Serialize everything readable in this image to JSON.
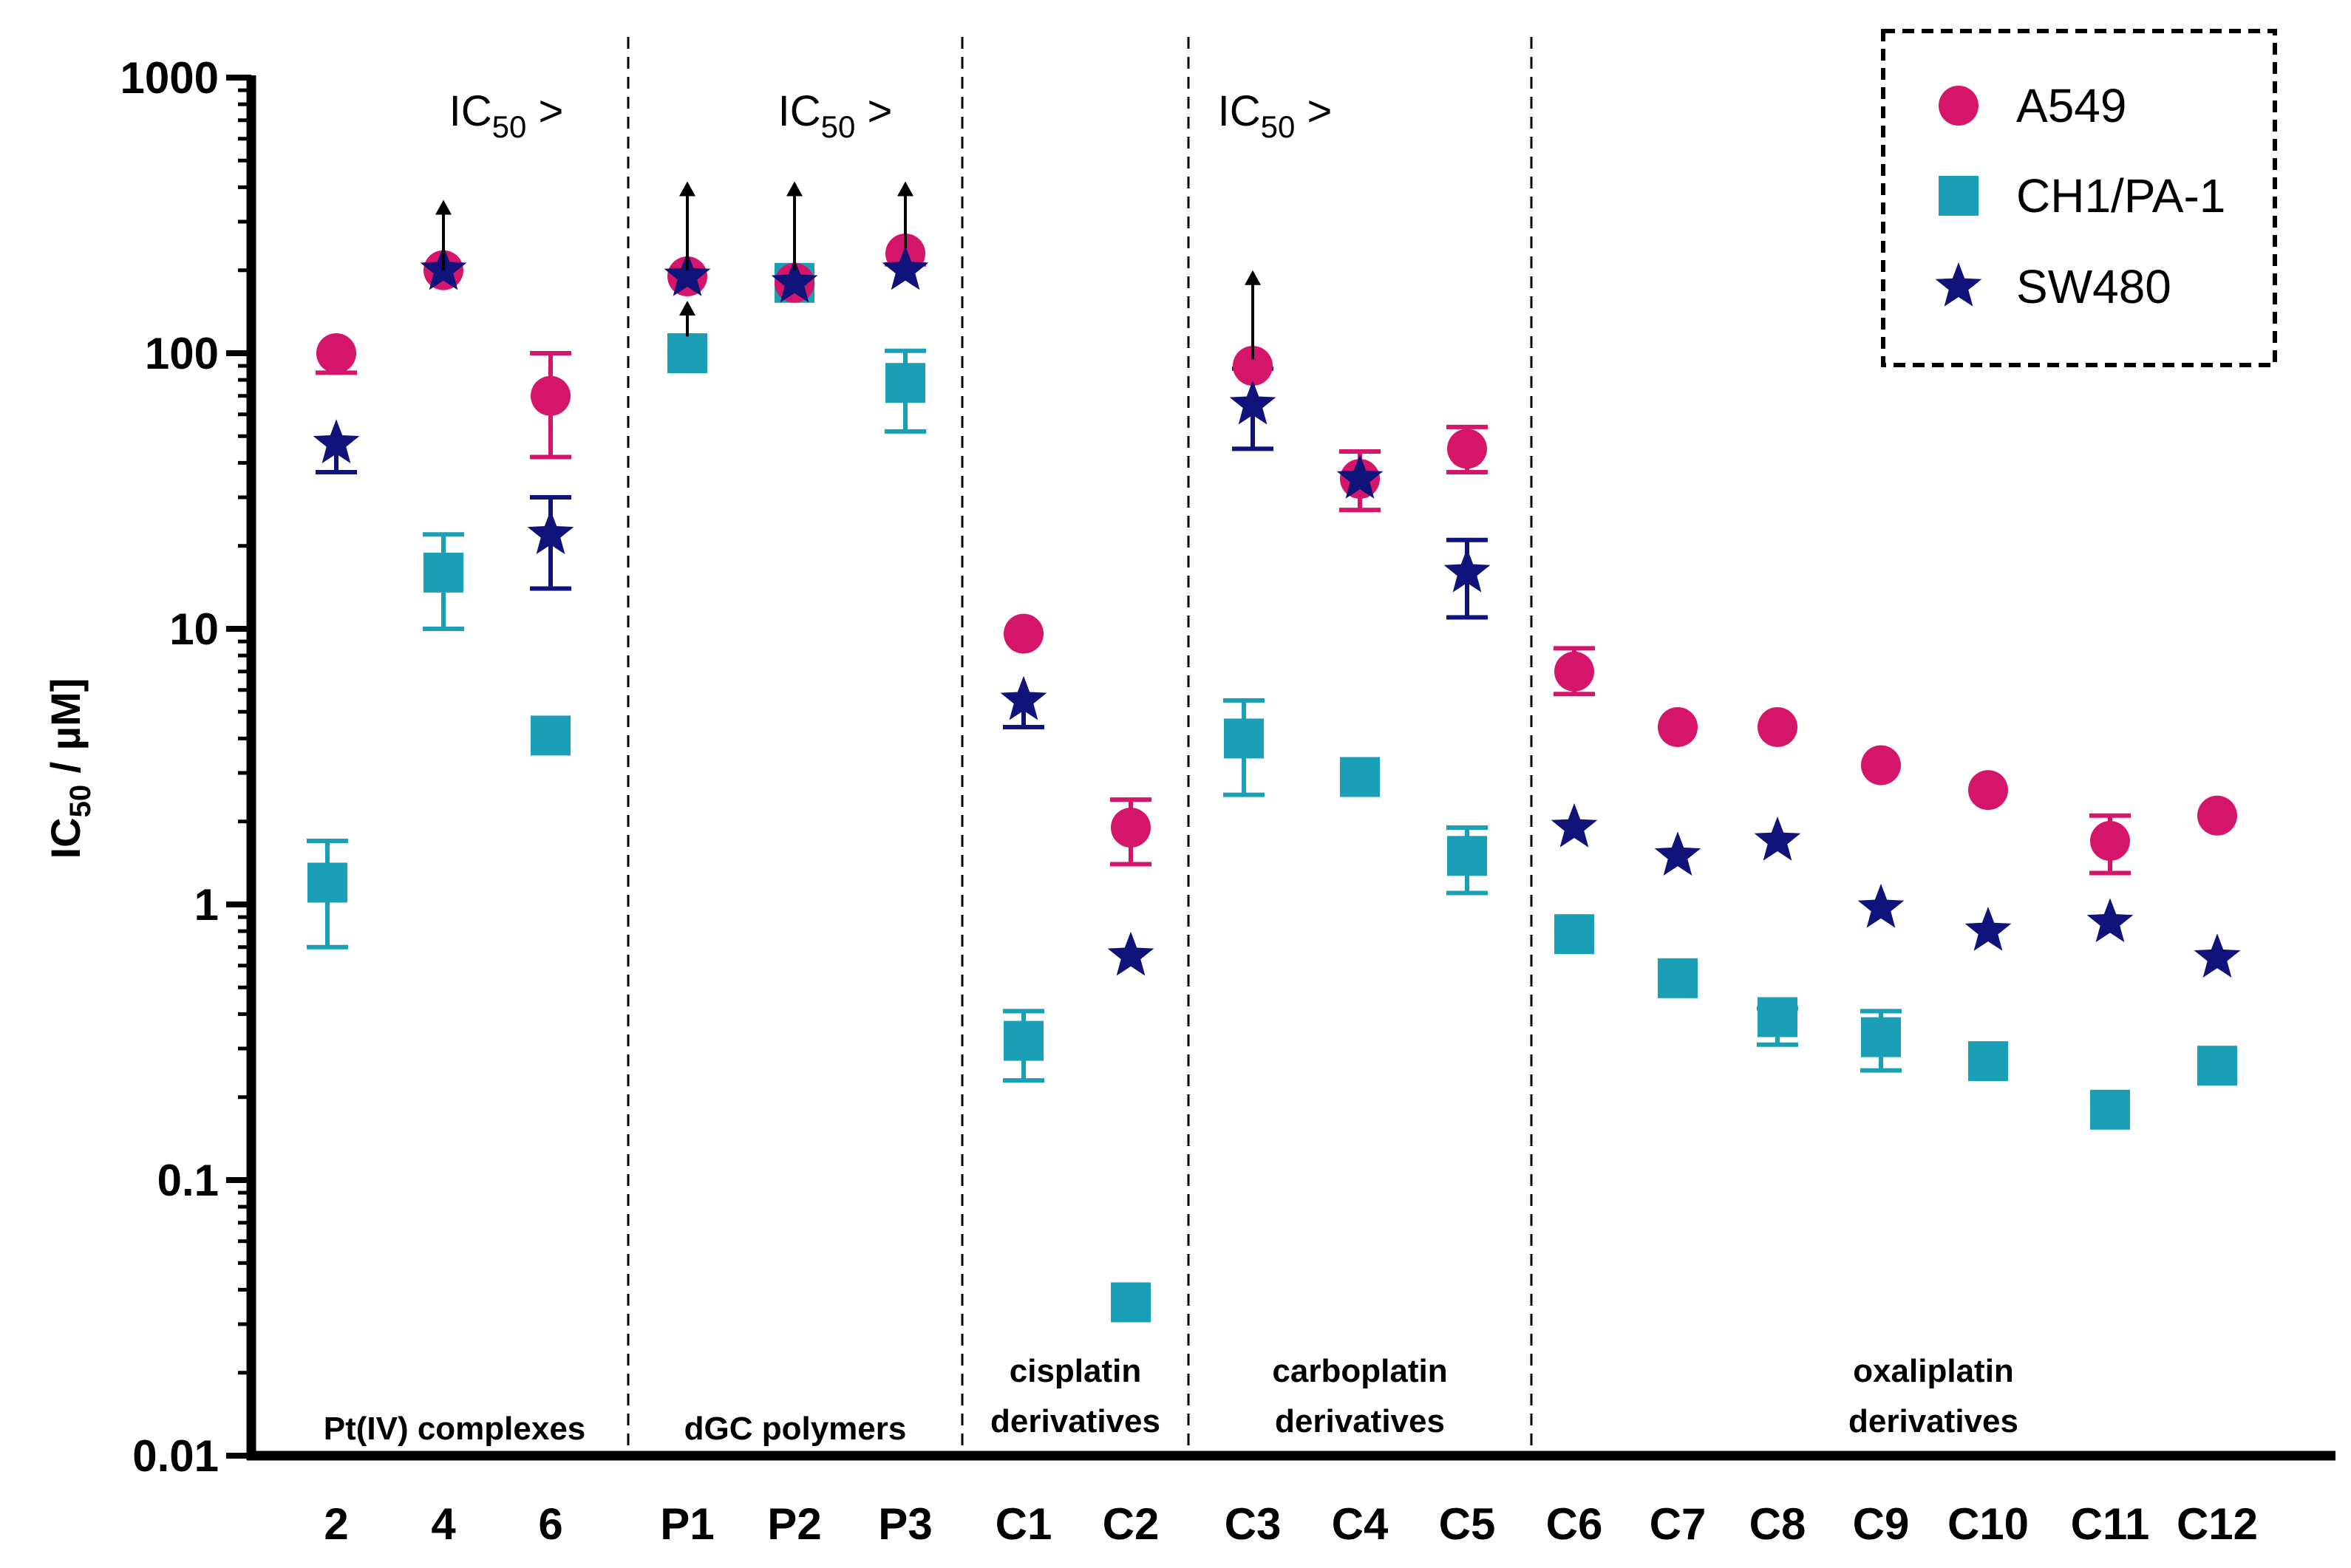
{
  "chart_data": {
    "type": "scatter",
    "title": "",
    "xlabel": "",
    "ylabel": "IC50 / µM",
    "ylabel_parts": {
      "main": "IC",
      "sub": "50",
      "rest": " / µM]"
    },
    "yscale": "log",
    "ylim": [
      0.01,
      1000
    ],
    "yticks": [
      "0.01",
      "0.1",
      "1",
      "10",
      "100",
      "1000"
    ],
    "categories": [
      "2",
      "4",
      "6",
      "P1",
      "P2",
      "P3",
      "C1",
      "C2",
      "C3",
      "C4",
      "C5",
      "C6",
      "C7",
      "C8",
      "C9",
      "C10",
      "C11",
      "C12"
    ],
    "groups": [
      {
        "label": "Pt(IV) complexes",
        "lines": [
          "Pt(IV) complexes"
        ],
        "start": 0,
        "end": 2
      },
      {
        "label": "dGC polymers",
        "lines": [
          "dGC polymers"
        ],
        "start": 3,
        "end": 5
      },
      {
        "label": "cisplatin derivatives",
        "lines": [
          "cisplatin",
          "derivatives"
        ],
        "start": 6,
        "end": 7
      },
      {
        "label": "carboplatin derivatives",
        "lines": [
          "carboplatin",
          "derivatives"
        ],
        "start": 8,
        "end": 10
      },
      {
        "label": "oxaliplatin derivatives",
        "lines": [
          "oxaliplatin",
          "derivatives"
        ],
        "start": 11,
        "end": 17
      }
    ],
    "annotations": [
      {
        "main": "IC",
        "sub": "50",
        "rest": " >",
        "group": 0
      },
      {
        "main": "IC",
        "sub": "50",
        "rest": " >",
        "group": 1
      },
      {
        "main": "IC",
        "sub": "50",
        "rest": " >",
        "group": 3
      }
    ],
    "series": [
      {
        "name": "A549",
        "color": "#d4156a",
        "marker": "circle",
        "values": [
          100,
          200,
          70,
          190,
          180,
          230,
          9.6,
          1.9,
          90,
          35,
          45,
          7,
          4.4,
          4.4,
          3.2,
          2.6,
          1.7,
          2.1
        ],
        "err_low": [
          85,
          null,
          42,
          null,
          null,
          210,
          null,
          1.4,
          null,
          27,
          37,
          5.8,
          null,
          null,
          null,
          null,
          1.3,
          null
        ],
        "err_high": [
          null,
          null,
          100,
          null,
          null,
          null,
          null,
          2.4,
          null,
          44,
          54,
          8.5,
          null,
          null,
          null,
          null,
          2.1,
          null
        ]
      },
      {
        "name": "CH1/PA-1",
        "color": "#1a9fb6",
        "marker": "square",
        "values": [
          1.2,
          16,
          4.1,
          100,
          180,
          78,
          0.32,
          0.036,
          4,
          2.9,
          1.5,
          0.78,
          0.54,
          0.39,
          0.33,
          0.27,
          0.18,
          0.26
        ],
        "err_low": [
          0.7,
          10,
          null,
          null,
          null,
          52,
          0.23,
          null,
          2.5,
          null,
          1.1,
          null,
          null,
          0.31,
          0.25,
          null,
          null,
          null
        ],
        "err_high": [
          1.7,
          22,
          null,
          null,
          null,
          102,
          0.41,
          null,
          5.5,
          null,
          1.9,
          null,
          null,
          0.42,
          0.41,
          null,
          null,
          null
        ]
      },
      {
        "name": "SW480",
        "color": "#10137a",
        "marker": "star",
        "values": [
          47,
          200,
          22,
          190,
          180,
          200,
          5.5,
          0.65,
          65,
          35,
          16,
          1.9,
          1.5,
          1.7,
          0.97,
          0.8,
          0.86,
          0.64
        ],
        "err_low": [
          37,
          null,
          14,
          null,
          null,
          null,
          4.4,
          null,
          45,
          null,
          11,
          null,
          null,
          null,
          null,
          null,
          null,
          null
        ],
        "err_high": [
          null,
          null,
          30,
          null,
          null,
          null,
          null,
          null,
          88,
          null,
          21,
          null,
          null,
          null,
          null,
          null,
          null,
          null
        ]
      }
    ],
    "arrows": [
      {
        "category": 1,
        "from": 200,
        "to": 360
      },
      {
        "category": 3,
        "from": 200,
        "to": 420
      },
      {
        "category": 3,
        "from": 115,
        "to": 155
      },
      {
        "category": 4,
        "from": 200,
        "to": 420
      },
      {
        "category": 5,
        "from": 240,
        "to": 420
      },
      {
        "category": 8,
        "from": 95,
        "to": 200
      }
    ],
    "legend": {
      "position": "top-right",
      "style": "dashed-box"
    }
  }
}
